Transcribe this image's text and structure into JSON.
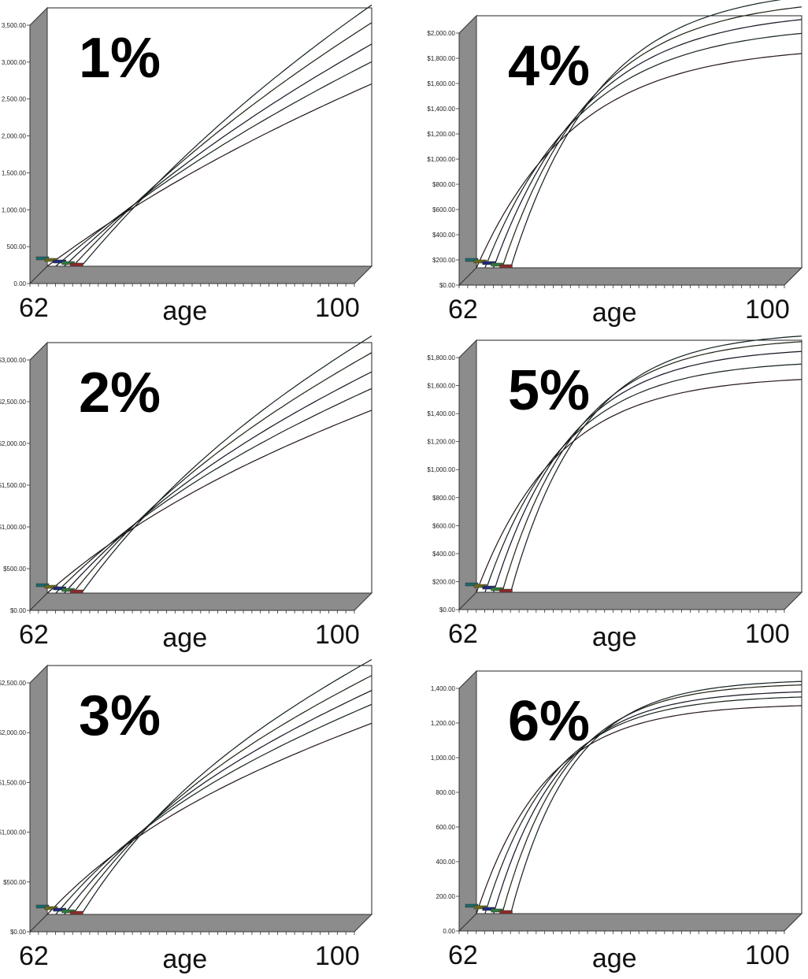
{
  "xlabel": "age",
  "chart_data": [
    {
      "type": "line",
      "title": "1%",
      "xlabel": "age",
      "x_start": 62,
      "x_end": 100,
      "ylim": [
        0,
        3500
      ],
      "yticks": [
        "0.00",
        "500.00",
        "1,000.00",
        "1,500.00",
        "2,000.00",
        "2,500.00",
        "3,000.00",
        "3,500.00"
      ],
      "series": [
        {
          "start_age": 62,
          "color": "#8b2a2a",
          "values_at_100": 2470
        },
        {
          "start_age": 63,
          "color": "#2f7a3a",
          "values_at_100": 2770
        },
        {
          "start_age": 64,
          "color": "#1f2a7a",
          "values_at_100": 3010
        },
        {
          "start_age": 65,
          "color": "#6a6a1a",
          "values_at_100": 3300
        },
        {
          "start_age": 66,
          "color": "#1a6a6a",
          "values_at_100": 3540
        }
      ]
    },
    {
      "type": "line",
      "title": "2%",
      "xlabel": "age",
      "x_start": 62,
      "x_end": 100,
      "ylim": [
        0,
        3000
      ],
      "yticks": [
        "$0.00",
        "$500.00",
        "$1,000.00",
        "$1,500.00",
        "$2,000.00",
        "$2,500.00",
        "$3,000.00"
      ],
      "series": [
        {
          "start_age": 62,
          "color": "#8b2a2a",
          "values_at_100": 2190
        },
        {
          "start_age": 63,
          "color": "#2f7a3a",
          "values_at_100": 2450
        },
        {
          "start_age": 64,
          "color": "#1f2a7a",
          "values_at_100": 2650
        },
        {
          "start_age": 65,
          "color": "#6a6a1a",
          "values_at_100": 2880
        },
        {
          "start_age": 66,
          "color": "#1a6a6a",
          "values_at_100": 3080
        }
      ]
    },
    {
      "type": "line",
      "title": "3%",
      "xlabel": "age",
      "x_start": 62,
      "x_end": 100,
      "ylim": [
        0,
        2500
      ],
      "yticks": [
        "$0.00",
        "$500.00",
        "$1,000.00",
        "$1,500.00",
        "$2,000.00",
        "$2,500.00"
      ],
      "series": [
        {
          "start_age": 62,
          "color": "#8b2a2a",
          "values_at_100": 1920
        },
        {
          "start_age": 63,
          "color": "#2f7a3a",
          "values_at_100": 2110
        },
        {
          "start_age": 64,
          "color": "#1f2a7a",
          "values_at_100": 2250
        },
        {
          "start_age": 65,
          "color": "#6a6a1a",
          "values_at_100": 2400
        },
        {
          "start_age": 66,
          "color": "#1a6a6a",
          "values_at_100": 2560
        }
      ]
    },
    {
      "type": "line",
      "title": "4%",
      "xlabel": "age",
      "x_start": 62,
      "x_end": 100,
      "ylim": [
        0,
        2000
      ],
      "yticks": [
        "$0.00",
        "$200.00",
        "$400.00",
        "$600.00",
        "$800.00",
        "$1,000.00",
        "$1,200.00",
        "$1,400.00",
        "$1,600.00",
        "$1,800.00",
        "$2,000.00"
      ],
      "series": [
        {
          "start_age": 62,
          "color": "#8b2a2a",
          "values_at_100": 1700
        },
        {
          "start_age": 63,
          "color": "#2f7a3a",
          "values_at_100": 1860
        },
        {
          "start_age": 64,
          "color": "#1f2a7a",
          "values_at_100": 1970
        },
        {
          "start_age": 65,
          "color": "#6a6a1a",
          "values_at_100": 2070
        },
        {
          "start_age": 66,
          "color": "#1a6a6a",
          "values_at_100": 2150
        }
      ]
    },
    {
      "type": "line",
      "title": "5%",
      "xlabel": "age",
      "x_start": 62,
      "x_end": 100,
      "ylim": [
        0,
        1800
      ],
      "yticks": [
        "$0.00",
        "$200.00",
        "$400.00",
        "$600.00",
        "$800.00",
        "$1,000.00",
        "$1,200.00",
        "$1,400.00",
        "$1,600.00",
        "$1,800.00"
      ],
      "series": [
        {
          "start_age": 62,
          "color": "#8b2a2a",
          "values_at_100": 1520
        },
        {
          "start_age": 63,
          "color": "#2f7a3a",
          "values_at_100": 1630
        },
        {
          "start_age": 64,
          "color": "#1f2a7a",
          "values_at_100": 1720
        },
        {
          "start_age": 65,
          "color": "#6a6a1a",
          "values_at_100": 1790
        },
        {
          "start_age": 66,
          "color": "#1a6a6a",
          "values_at_100": 1830
        }
      ]
    },
    {
      "type": "line",
      "title": "6%",
      "xlabel": "age",
      "x_start": 62,
      "x_end": 100,
      "ylim": [
        0,
        1400
      ],
      "yticks": [
        "0.00",
        "200.00",
        "400.00",
        "600.00",
        "800.00",
        "1,000.00",
        "1,200.00",
        "1,400.00"
      ],
      "series": [
        {
          "start_age": 62,
          "color": "#8b2a2a",
          "values_at_100": 1200
        },
        {
          "start_age": 63,
          "color": "#2f7a3a",
          "values_at_100": 1250
        },
        {
          "start_age": 64,
          "color": "#1f2a7a",
          "values_at_100": 1280
        },
        {
          "start_age": 65,
          "color": "#6a6a1a",
          "values_at_100": 1320
        },
        {
          "start_age": 66,
          "color": "#1a6a6a",
          "values_at_100": 1340
        }
      ]
    }
  ]
}
